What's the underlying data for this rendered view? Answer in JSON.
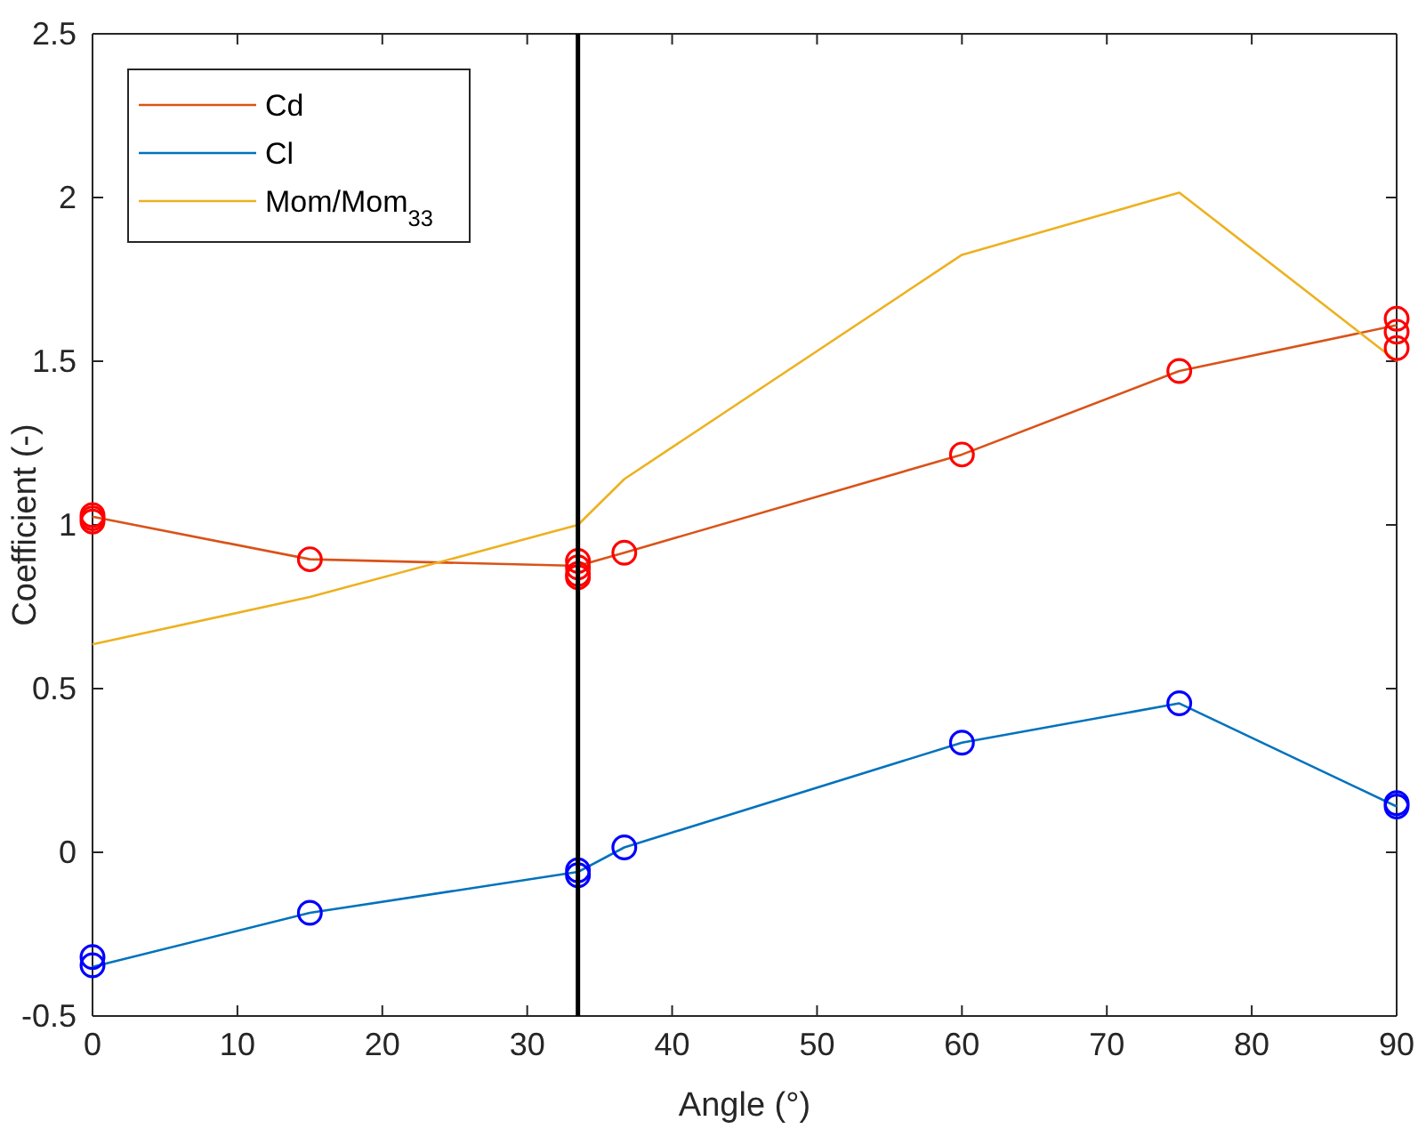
{
  "chart_data": {
    "type": "line",
    "xlabel": "Angle (°)",
    "ylabel": "Coefficient (-)",
    "xlim": [
      0,
      90
    ],
    "ylim": [
      -0.5,
      2.5
    ],
    "xticks": [
      0,
      10,
      20,
      30,
      40,
      50,
      60,
      70,
      80,
      90
    ],
    "yticks": [
      -0.5,
      0,
      0.5,
      1,
      1.5,
      2,
      2.5
    ],
    "grid": false,
    "legend": "top left",
    "marker": "none",
    "line_style": "solid",
    "ref_lines": [
      {
        "axis": "x",
        "value": 33.5,
        "color": "#000000"
      }
    ],
    "series": [
      {
        "name": "Cd",
        "color": "#d95319",
        "x": [
          0,
          15,
          33.5,
          36.7,
          60,
          75,
          90
        ],
        "values": [
          1.025,
          0.895,
          0.875,
          0.915,
          1.215,
          1.47,
          1.61
        ]
      },
      {
        "name": "Cl",
        "color": "#0072bd",
        "x": [
          0,
          15,
          33.5,
          36.7,
          60,
          75,
          90
        ],
        "values": [
          -0.35,
          -0.185,
          -0.06,
          0.015,
          0.335,
          0.455,
          0.14
        ]
      },
      {
        "name": "Mom/Mom$_{33}$",
        "color": "#edb120",
        "x": [
          0,
          15,
          33.5,
          36.7,
          60,
          75,
          90
        ],
        "values": [
          0.635,
          0.78,
          1.0,
          1.14,
          1.825,
          2.015,
          1.5
        ]
      },
      {
        "type": "scatter",
        "marker": "circle",
        "color": "#ff0000",
        "x": [
          0,
          0,
          0,
          15,
          33.5,
          33.5,
          33.5,
          33.5,
          36.7,
          60,
          75,
          90,
          90,
          90
        ],
        "values": [
          1.01,
          1.02,
          1.03,
          0.895,
          0.89,
          0.87,
          0.85,
          0.84,
          0.915,
          1.215,
          1.47,
          1.63,
          1.59,
          1.54
        ]
      },
      {
        "type": "scatter",
        "marker": "circle",
        "color": "#0000ff",
        "x": [
          0,
          0,
          15,
          33.5,
          33.5,
          36.7,
          60,
          75,
          90,
          90
        ],
        "values": [
          -0.32,
          -0.345,
          -0.185,
          -0.055,
          -0.07,
          0.015,
          0.335,
          0.455,
          0.14,
          0.15
        ]
      }
    ]
  }
}
